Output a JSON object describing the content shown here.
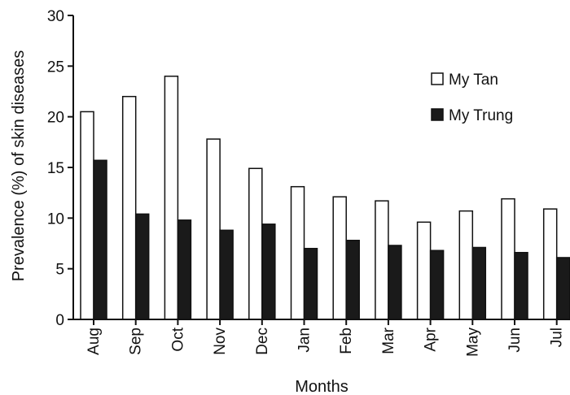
{
  "chart_data": {
    "type": "bar",
    "categories": [
      "Aug",
      "Sep",
      "Oct",
      "Nov",
      "Dec",
      "Jan",
      "Feb",
      "Mar",
      "Apr",
      "May",
      "Jun",
      "Jul"
    ],
    "series": [
      {
        "name": "My Tan",
        "values": [
          20.5,
          22.0,
          24.0,
          17.8,
          14.9,
          13.1,
          12.1,
          11.7,
          9.6,
          10.7,
          11.9,
          10.9
        ],
        "color": "#ffffff"
      },
      {
        "name": "My Trung",
        "values": [
          15.7,
          10.4,
          9.8,
          8.8,
          9.4,
          7.0,
          7.8,
          7.3,
          6.8,
          7.1,
          6.6,
          6.1
        ],
        "color": "#1a1a1a"
      }
    ],
    "title": "",
    "xlabel": "Months",
    "ylabel": "Prevalence (%) of skin diseases",
    "ylim": [
      0,
      30
    ],
    "yticks": [
      "0",
      "5",
      "10",
      "15",
      "20",
      "25",
      "30"
    ],
    "grid": false,
    "legend_position": "top-right"
  }
}
